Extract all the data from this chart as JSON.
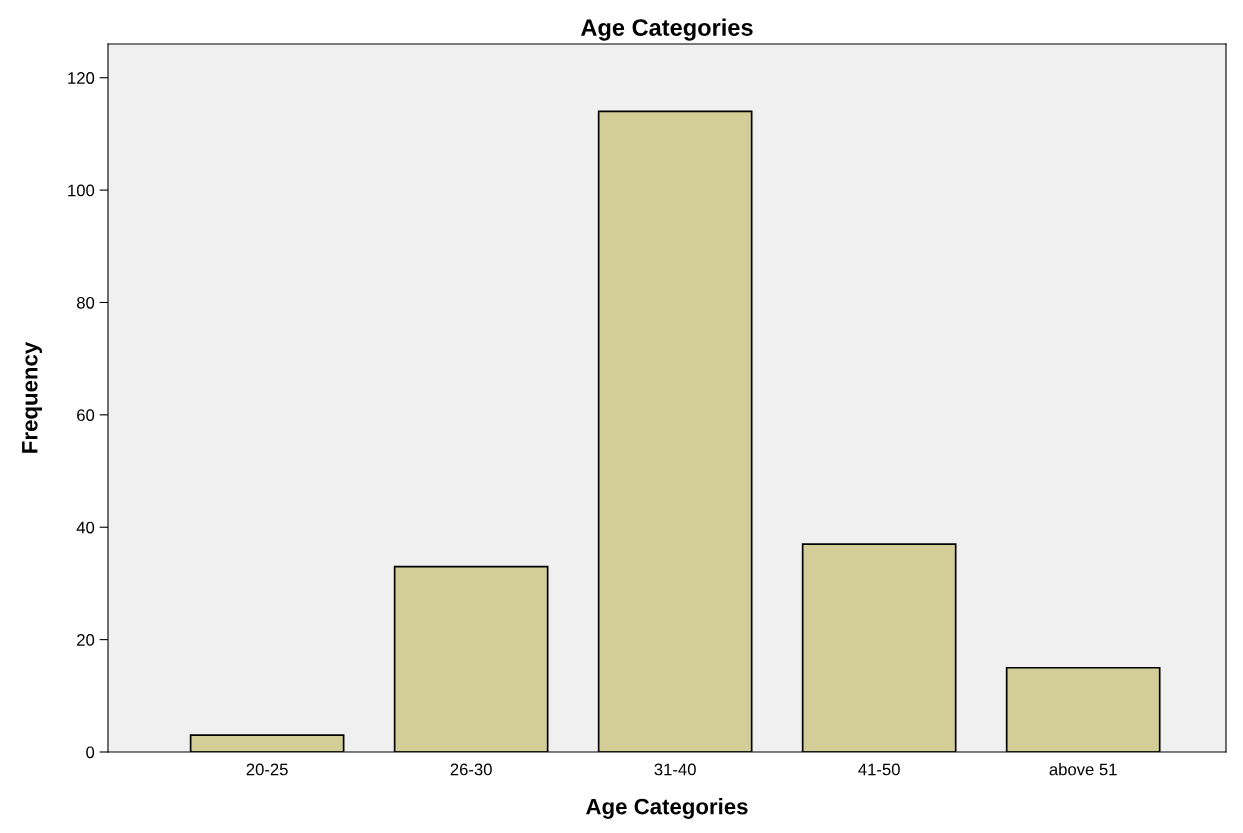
{
  "chart_data": {
    "type": "bar",
    "title": "Age Categories",
    "xlabel": "Age Categories",
    "ylabel": "Frequency",
    "categories": [
      "20-25",
      "26-30",
      "31-40",
      "41-50",
      "above 51"
    ],
    "values": [
      3,
      33,
      114,
      37,
      15
    ],
    "color": "#d3ce97",
    "ylim": [
      0,
      126
    ],
    "yticks": [
      0,
      20,
      40,
      60,
      80,
      100,
      120
    ],
    "grid": false
  }
}
